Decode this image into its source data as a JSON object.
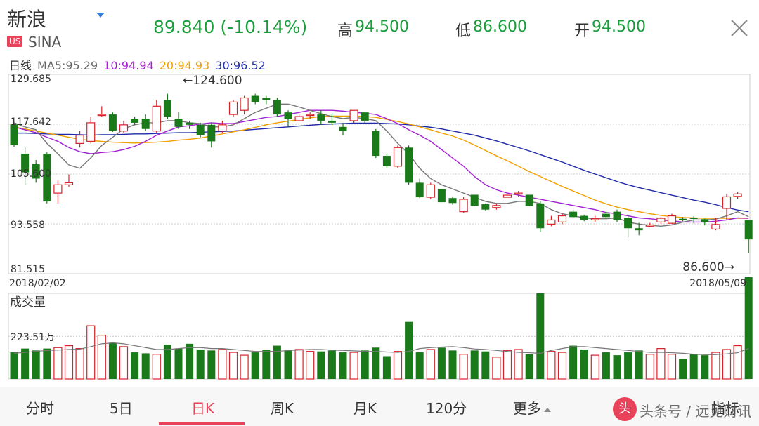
{
  "header": {
    "name": "新浪",
    "market": "US",
    "symbol": "SINA",
    "price_text": "89.840 (-10.14%)",
    "high_label": "高",
    "high_value": "94.500",
    "low_label": "低",
    "low_value": "86.600",
    "open_label": "开",
    "open_value": "94.500"
  },
  "ma_line": {
    "period_label": "日线",
    "ma5": "MA5:95.29",
    "ma10": "10:94.94",
    "ma20": "20:94.93",
    "ma30": "30:96.52"
  },
  "colors": {
    "up": "#d8222a",
    "down": "#1a7a1a",
    "ma5": "#777777",
    "ma10": "#a21fd2",
    "ma20": "#f0a000",
    "ma30": "#1f2aa8"
  },
  "chart_data": {
    "type": "candlestick",
    "y_ticks": [
      "129.685",
      "117.642",
      "105.600",
      "93.558",
      "81.515"
    ],
    "ylim": [
      81.515,
      129.685
    ],
    "start_date": "2018/02/02",
    "end_date": "2018/05/09",
    "max_annotation": "←124.600",
    "min_annotation": "86.600→",
    "volume_label": "成交量",
    "volume_tick": "223.51万",
    "volume_tick_value": 223.51,
    "volume_max": 450,
    "candles": [
      [
        117.6,
        112.6,
        117.9,
        112.2
      ],
      [
        110.5,
        106,
        112,
        103
      ],
      [
        108,
        104.5,
        109,
        103.5
      ],
      [
        110.5,
        99,
        110.8,
        98.5
      ],
      [
        101,
        103,
        104,
        98.5
      ],
      [
        103,
        103.5,
        105.5,
        102.5
      ],
      [
        113,
        115,
        116,
        112
      ],
      [
        113.5,
        118,
        119.5,
        113
      ],
      [
        120,
        120,
        122,
        119.5
      ],
      [
        120,
        116,
        120.5,
        115.8
      ],
      [
        116,
        117.5,
        118.5,
        115.5
      ],
      [
        119,
        118,
        119.5,
        117.5
      ],
      [
        119,
        116.5,
        120,
        116
      ],
      [
        116,
        122,
        123.5,
        115.5
      ],
      [
        123.5,
        119.5,
        125,
        119
      ],
      [
        119,
        117,
        120.5,
        116.5
      ],
      [
        118,
        117.5,
        118.5,
        116.5
      ],
      [
        117.5,
        115,
        118,
        114.5
      ],
      [
        117.5,
        113.5,
        118,
        112
      ],
      [
        116,
        117.5,
        118.5,
        115.5
      ],
      [
        120,
        123,
        123.5,
        119.5
      ],
      [
        121,
        124,
        124.5,
        120
      ],
      [
        124.5,
        123,
        125,
        122.5
      ],
      [
        124,
        123.5,
        124.5,
        122.5
      ],
      [
        123.5,
        120,
        124,
        119.5
      ],
      [
        120.5,
        119,
        121,
        117
      ],
      [
        118.5,
        119.5,
        120,
        118.5
      ],
      [
        119.8,
        120,
        120.5,
        119
      ],
      [
        120,
        118.5,
        121,
        117.5
      ],
      [
        118.5,
        118,
        120,
        117.5
      ],
      [
        117,
        116,
        118,
        115
      ],
      [
        118.5,
        121,
        121,
        118
      ],
      [
        120.5,
        118.5,
        120.5,
        118
      ],
      [
        116,
        110,
        116.5,
        109.5
      ],
      [
        110,
        107.5,
        110.5,
        107
      ],
      [
        107.5,
        112,
        112.5,
        107
      ],
      [
        112,
        103.5,
        112.5,
        103
      ],
      [
        103.5,
        100,
        104.5,
        99.8
      ],
      [
        100,
        103,
        103.5,
        99.5
      ],
      [
        102,
        98.8,
        102,
        98.8
      ],
      [
        99.8,
        98.6,
        100.2,
        98.2
      ],
      [
        96.5,
        99.5,
        100,
        96.2
      ],
      [
        100.6,
        97.9,
        100.6,
        97.8
      ],
      [
        98.3,
        97,
        98.5,
        96.8
      ],
      [
        97.5,
        98,
        98.5,
        97
      ],
      [
        100,
        100.5,
        100.5,
        100
      ],
      [
        101,
        101,
        101.5,
        100.2
      ],
      [
        100.6,
        97.9,
        100.6,
        97.8
      ],
      [
        98.5,
        92.5,
        99,
        91.6
      ],
      [
        93.5,
        94.5,
        95.5,
        93
      ],
      [
        94,
        95.5,
        96,
        93.5
      ],
      [
        96.5,
        95.2,
        97,
        95
      ],
      [
        95.5,
        94.5,
        95.8,
        94.2
      ],
      [
        94.5,
        94.8,
        95.5,
        94
      ],
      [
        96,
        95.2,
        96.5,
        94.8
      ],
      [
        96.5,
        94.5,
        97,
        94
      ],
      [
        95,
        92.5,
        95.8,
        90.5
      ],
      [
        92.5,
        92,
        93.8,
        90.8
      ],
      [
        93,
        93.3,
        93.8,
        92.7
      ],
      [
        94,
        94.9,
        95.2,
        93.6
      ],
      [
        93.7,
        95.5,
        96,
        93.5
      ],
      [
        94.8,
        94.6,
        95.2,
        94.2
      ],
      [
        95,
        94.9,
        95.4,
        93.7
      ],
      [
        94.7,
        94,
        94.8,
        93.2
      ],
      [
        92.3,
        93.4,
        95,
        92
      ],
      [
        97.3,
        100.1,
        100.8,
        94.5
      ],
      [
        100.2,
        100.8,
        101.2,
        99.6
      ],
      [
        94.5,
        89.8,
        94.5,
        86.6
      ]
    ],
    "ma5": [
      118,
      117,
      116.3,
      113,
      110.5,
      107.8,
      107,
      109.5,
      112.5,
      114.5,
      116.5,
      117.5,
      118,
      118,
      118.5,
      118.5,
      118,
      117.8,
      117,
      117,
      117.5,
      119,
      120.5,
      121.5,
      122.5,
      122.5,
      121.8,
      121,
      120.2,
      119.5,
      119,
      119.3,
      119,
      118.5,
      116,
      113,
      110.5,
      107,
      104.5,
      103,
      102,
      101,
      100,
      99,
      98.5,
      98.5,
      99,
      99,
      98.5,
      97,
      96,
      95.5,
      95,
      94.8,
      94.8,
      95,
      94,
      93.5,
      93.2,
      93,
      93.3,
      94,
      94.5,
      94.5,
      94.7,
      95.5,
      96.5,
      95.3
    ],
    "ma10": [
      117,
      116.3,
      115.6,
      114.5,
      113.5,
      112,
      111,
      110.5,
      110.8,
      111,
      111.5,
      112.3,
      113.5,
      115,
      116,
      117,
      117.3,
      117.7,
      118,
      117.8,
      117.8,
      118.3,
      118.8,
      119.3,
      119.5,
      120,
      120.5,
      121,
      121,
      121,
      120.8,
      120.5,
      120.3,
      120,
      119,
      117.8,
      116.3,
      115,
      113.5,
      111.5,
      109.5,
      107.5,
      105,
      103,
      101.8,
      101,
      100.5,
      100,
      99.5,
      99,
      98.5,
      98,
      97.5,
      97,
      96.3,
      96,
      95.5,
      95,
      94.8,
      94.5,
      94.3,
      94,
      94,
      94,
      94.2,
      94.5,
      95,
      94.9
    ],
    "ma20": [
      117,
      116.5,
      116,
      115.5,
      115,
      114.5,
      114,
      113.7,
      113.5,
      113.3,
      113.2,
      113.1,
      113.2,
      113.3,
      113.5,
      113.8,
      114,
      114.3,
      114.8,
      115.3,
      115.8,
      116.3,
      116.9,
      117.5,
      118,
      118.4,
      118.8,
      119.2,
      119.5,
      119.6,
      119.6,
      119.6,
      119.5,
      119.3,
      118.8,
      118.3,
      117.7,
      117,
      116.3,
      115.5,
      114.8,
      113.8,
      112.6,
      111.3,
      110,
      108.8,
      107.5,
      106.2,
      105,
      103.8,
      102.6,
      101.5,
      100.4,
      99.3,
      98.4,
      97.6,
      97,
      96.5,
      96,
      95.6,
      95.3,
      95.1,
      95,
      94.9,
      94.9,
      94.9,
      94.9,
      94.9
    ],
    "ma30": [
      115.5,
      115.5,
      115.4,
      115.3,
      115.2,
      115.2,
      115.1,
      115,
      115.1,
      115.1,
      115.2,
      115.3,
      115.3,
      115.4,
      115.5,
      115.6,
      115.6,
      115.7,
      115.8,
      115.9,
      116,
      116.2,
      116.4,
      116.6,
      116.8,
      117,
      117.2,
      117.4,
      117.6,
      117.7,
      117.8,
      117.9,
      117.9,
      117.9,
      117.8,
      117.7,
      117.5,
      117.2,
      116.9,
      116.5,
      116,
      115.5,
      115,
      114.3,
      113.6,
      112.8,
      112,
      111.2,
      110.3,
      109.4,
      108.5,
      107.5,
      106.5,
      105.6,
      104.7,
      103.8,
      103,
      102.3,
      101.7,
      101.1,
      100.5,
      99.9,
      99.3,
      98.8,
      98.2,
      97.5,
      96.9,
      96.5
    ],
    "volume": [
      140,
      160,
      150,
      160,
      165,
      175,
      160,
      280,
      230,
      190,
      170,
      140,
      135,
      130,
      180,
      160,
      185,
      155,
      150,
      155,
      140,
      125,
      140,
      155,
      175,
      150,
      155,
      145,
      145,
      150,
      140,
      140,
      150,
      165,
      120,
      145,
      300,
      140,
      155,
      165,
      150,
      130,
      150,
      145,
      115,
      150,
      155,
      130,
      450,
      145,
      140,
      175,
      155,
      125,
      140,
      125,
      140,
      150,
      130,
      160,
      130,
      105,
      130,
      125,
      140,
      155,
      175,
      535
    ],
    "vol_ma": [
      135,
      140,
      145,
      150,
      152,
      155,
      157,
      170,
      185,
      190,
      185,
      175,
      165,
      155,
      155,
      160,
      165,
      165,
      160,
      160,
      155,
      150,
      145,
      145,
      145,
      150,
      152,
      155,
      155,
      152,
      150,
      148,
      145,
      145,
      142,
      140,
      145,
      160,
      165,
      168,
      170,
      165,
      158,
      155,
      150,
      145,
      140,
      138,
      135,
      150,
      160,
      170,
      170,
      165,
      160,
      155,
      150,
      145,
      140,
      140,
      138,
      135,
      130,
      128,
      128,
      132,
      138,
      160
    ]
  },
  "nav": {
    "items": [
      "分时",
      "5日",
      "日K",
      "周K",
      "月K",
      "120分",
      "更多",
      "指标"
    ]
  },
  "watermark": {
    "icon": "头",
    "text": "头条号 / 远见财讯"
  }
}
